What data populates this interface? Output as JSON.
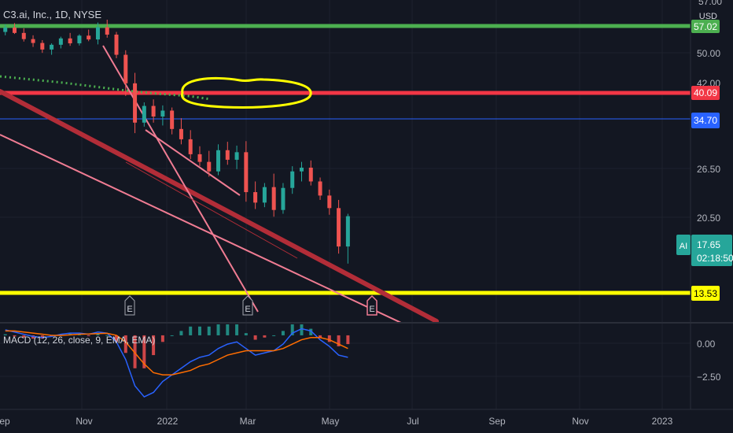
{
  "header": {
    "symbol_line": "C3.ai, Inc., 1D, NYSE",
    "currency": "USD"
  },
  "price_axis": {
    "top_partial": "57.00",
    "ticks": [
      "50.00",
      "42.00",
      "26.50",
      "20.50"
    ]
  },
  "markers": [
    {
      "value": "57.02",
      "bg": "#4caf50",
      "color": "#ffffff"
    },
    {
      "value": "40.09",
      "bg": "#f23645",
      "color": "#ffffff"
    },
    {
      "value": "34.70",
      "bg": "#2962ff",
      "color": "#ffffff"
    },
    {
      "value": "13.53",
      "bg": "#ffff00",
      "color": "#000000"
    }
  ],
  "last_price": {
    "ticker_badge": "AI",
    "price": "17.65",
    "countdown": "02:18:50"
  },
  "macd": {
    "legend": "MACD (12, 26, close, 9, EMA, EMA)",
    "ticks": [
      "0.00",
      "−2.50"
    ]
  },
  "time_axis": [
    "Sep",
    "Nov",
    "2022",
    "Mar",
    "May",
    "Jul",
    "Sep",
    "Nov",
    "2023"
  ],
  "earnings_labels": [
    "E",
    "E",
    "E"
  ],
  "colors": {
    "background": "#131722",
    "bull": "#26a69a",
    "bear": "#ef5350",
    "support_green": "#4caf50",
    "resistance_red": "#f23645",
    "blue_line": "#2962ff",
    "yellow": "#ffff00",
    "trend_dark_red": "#b22d38",
    "trend_pink": "#f07c93",
    "macd_line": "#2962ff",
    "signal_line": "#ff6d00"
  },
  "chart_data": {
    "type": "candlestick",
    "title": "C3.ai, Inc., 1D, NYSE",
    "ylim": [
      9.5,
      62
    ],
    "y_scale": "log",
    "x_range": [
      "2021-08-28",
      "2023-02-01"
    ],
    "horizontal_levels": [
      {
        "value": 57.02,
        "color": "green"
      },
      {
        "value": 40.09,
        "color": "red"
      },
      {
        "value": 34.7,
        "color": "blue"
      },
      {
        "value": 13.53,
        "color": "yellow"
      }
    ],
    "candles": [
      {
        "date": "2021-09-01",
        "o": 51.5,
        "h": 53.8,
        "l": 50.5,
        "c": 52.8
      },
      {
        "date": "2021-09-08",
        "o": 52.8,
        "h": 54.2,
        "l": 50.9,
        "c": 51.2
      },
      {
        "date": "2021-09-15",
        "o": 51.2,
        "h": 52.6,
        "l": 48.7,
        "c": 49.4
      },
      {
        "date": "2021-09-22",
        "o": 49.4,
        "h": 50.5,
        "l": 47.2,
        "c": 48.3
      },
      {
        "date": "2021-09-29",
        "o": 48.3,
        "h": 49.1,
        "l": 45.6,
        "c": 46.5
      },
      {
        "date": "2021-10-06",
        "o": 46.5,
        "h": 48.2,
        "l": 45.1,
        "c": 47.8
      },
      {
        "date": "2021-10-13",
        "o": 47.8,
        "h": 50.1,
        "l": 46.8,
        "c": 49.6
      },
      {
        "date": "2021-10-20",
        "o": 49.6,
        "h": 51.2,
        "l": 47.5,
        "c": 48.2
      },
      {
        "date": "2021-10-27",
        "o": 48.2,
        "h": 50.8,
        "l": 47.6,
        "c": 50.4
      },
      {
        "date": "2021-11-03",
        "o": 50.4,
        "h": 52.2,
        "l": 48.8,
        "c": 49.3
      },
      {
        "date": "2021-11-10",
        "o": 49.3,
        "h": 54.4,
        "l": 47.9,
        "c": 52.9
      },
      {
        "date": "2021-11-17",
        "o": 52.9,
        "h": 55.3,
        "l": 49.8,
        "c": 50.7
      },
      {
        "date": "2021-11-24",
        "o": 50.7,
        "h": 51.5,
        "l": 44.2,
        "c": 45.1
      },
      {
        "date": "2021-12-01",
        "o": 45.1,
        "h": 46.3,
        "l": 35.5,
        "c": 38.2
      },
      {
        "date": "2021-12-08",
        "o": 38.2,
        "h": 40.6,
        "l": 28.6,
        "c": 30.4
      },
      {
        "date": "2021-12-15",
        "o": 30.4,
        "h": 34.2,
        "l": 29.7,
        "c": 33.5
      },
      {
        "date": "2021-12-22",
        "o": 33.5,
        "h": 34.8,
        "l": 30.4,
        "c": 31.5
      },
      {
        "date": "2021-12-29",
        "o": 31.5,
        "h": 33.6,
        "l": 29.9,
        "c": 32.6
      },
      {
        "date": "2022-01-05",
        "o": 32.6,
        "h": 33.2,
        "l": 28.4,
        "c": 29.3
      },
      {
        "date": "2022-01-12",
        "o": 29.3,
        "h": 31.2,
        "l": 26.8,
        "c": 27.6
      },
      {
        "date": "2022-01-19",
        "o": 27.6,
        "h": 29.1,
        "l": 24.6,
        "c": 25.3
      },
      {
        "date": "2022-01-26",
        "o": 25.3,
        "h": 26.5,
        "l": 23.6,
        "c": 24.2
      },
      {
        "date": "2022-02-02",
        "o": 24.2,
        "h": 25.8,
        "l": 22.2,
        "c": 22.9
      },
      {
        "date": "2022-02-09",
        "o": 22.9,
        "h": 26.8,
        "l": 22.4,
        "c": 25.9
      },
      {
        "date": "2022-02-16",
        "o": 25.9,
        "h": 27.2,
        "l": 23.8,
        "c": 24.5
      },
      {
        "date": "2022-02-23",
        "o": 24.5,
        "h": 26.6,
        "l": 23.2,
        "c": 25.6
      },
      {
        "date": "2022-03-02",
        "o": 25.6,
        "h": 27.3,
        "l": 19.2,
        "c": 20.3
      },
      {
        "date": "2022-03-09",
        "o": 20.3,
        "h": 21.6,
        "l": 18.4,
        "c": 19.1
      },
      {
        "date": "2022-03-16",
        "o": 19.1,
        "h": 21.4,
        "l": 18.6,
        "c": 20.9
      },
      {
        "date": "2022-03-23",
        "o": 20.9,
        "h": 22.6,
        "l": 17.6,
        "c": 18.3
      },
      {
        "date": "2022-03-30",
        "o": 18.3,
        "h": 21.4,
        "l": 17.9,
        "c": 20.8
      },
      {
        "date": "2022-04-06",
        "o": 20.8,
        "h": 23.6,
        "l": 20.1,
        "c": 22.9
      },
      {
        "date": "2022-04-13",
        "o": 22.9,
        "h": 24.2,
        "l": 21.6,
        "c": 23.4
      },
      {
        "date": "2022-04-20",
        "o": 23.4,
        "h": 24.4,
        "l": 21.1,
        "c": 21.6
      },
      {
        "date": "2022-04-27",
        "o": 21.6,
        "h": 22.1,
        "l": 19.4,
        "c": 19.9
      },
      {
        "date": "2022-05-04",
        "o": 19.9,
        "h": 20.6,
        "l": 17.8,
        "c": 18.5
      },
      {
        "date": "2022-05-11",
        "o": 18.5,
        "h": 19.4,
        "l": 14.2,
        "c": 14.8
      },
      {
        "date": "2022-05-18",
        "o": 14.8,
        "h": 17.9,
        "l": 13.4,
        "c": 17.65
      }
    ],
    "macd_series": [
      {
        "name": "MACD",
        "values": [
          0.25,
          0.15,
          0.05,
          -0.05,
          -0.1,
          -0.05,
          0.05,
          0.1,
          0.1,
          0.05,
          0.15,
          0.1,
          -0.3,
          -1.1,
          -2.3,
          -2.8,
          -2.6,
          -2.1,
          -1.8,
          -1.5,
          -1.2,
          -1.0,
          -0.9,
          -0.6,
          -0.4,
          -0.3,
          -0.6,
          -0.9,
          -0.8,
          -0.7,
          -0.4,
          0.1,
          0.3,
          0.2,
          -0.2,
          -0.5,
          -0.9,
          -1.0
        ]
      },
      {
        "name": "Signal",
        "values": [
          0.2,
          0.2,
          0.15,
          0.1,
          0.05,
          0.0,
          0.0,
          0.02,
          0.05,
          0.06,
          0.08,
          0.09,
          0.0,
          -0.3,
          -0.8,
          -1.3,
          -1.7,
          -1.8,
          -1.8,
          -1.7,
          -1.6,
          -1.4,
          -1.3,
          -1.1,
          -0.9,
          -0.8,
          -0.7,
          -0.7,
          -0.7,
          -0.7,
          -0.6,
          -0.4,
          -0.2,
          -0.1,
          -0.1,
          -0.2,
          -0.4,
          -0.6
        ]
      }
    ],
    "macd_ylim": [
      -3.3,
      0.5
    ]
  }
}
